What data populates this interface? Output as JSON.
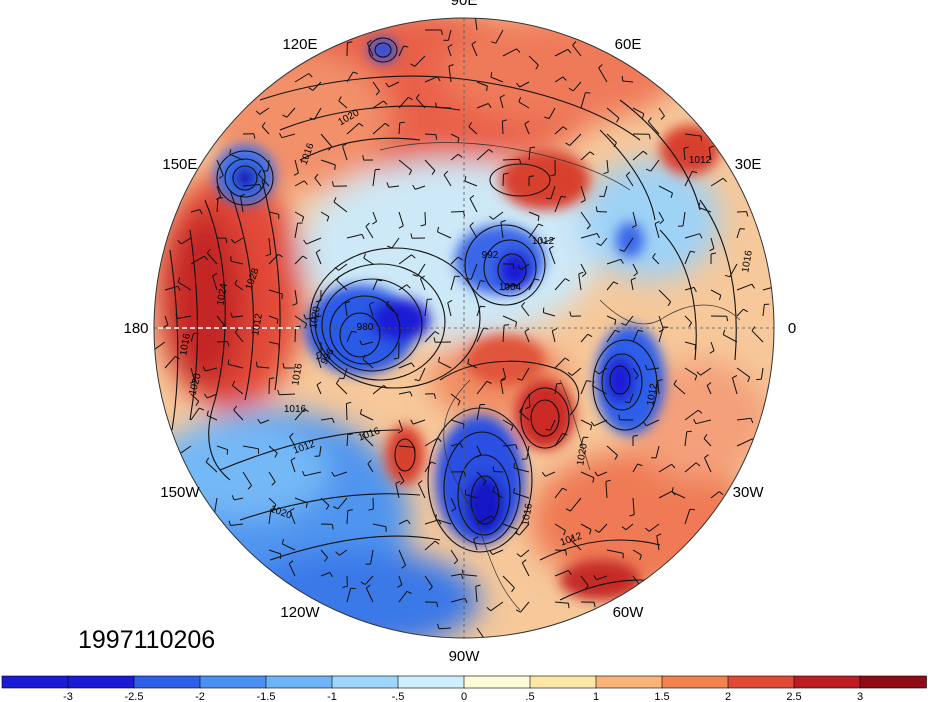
{
  "map": {
    "projection": "north-polar-stereographic",
    "date_label": "1997110206",
    "longitude_labels": [
      {
        "lon": 90,
        "text": "90E"
      },
      {
        "lon": 120,
        "text": "120E"
      },
      {
        "lon": 60,
        "text": "60E"
      },
      {
        "lon": 150,
        "text": "150E"
      },
      {
        "lon": 30,
        "text": "30E"
      },
      {
        "lon": 180,
        "text": "180"
      },
      {
        "lon": 0,
        "text": "0"
      },
      {
        "lon": -150,
        "text": "150W"
      },
      {
        "lon": -30,
        "text": "30W"
      },
      {
        "lon": -120,
        "text": "120W"
      },
      {
        "lon": -60,
        "text": "60W"
      },
      {
        "lon": -90,
        "text": "90W"
      }
    ],
    "contour_labels": [
      "1012",
      "1016",
      "1020",
      "1024",
      "1028",
      "1012",
      "1016",
      "1020",
      "1016",
      "1012",
      "1020",
      "1016",
      "1012",
      "1016",
      "1012",
      "1020",
      "1016",
      "996",
      "980",
      "992",
      "1004",
      "1012",
      "1016",
      "1020"
    ],
    "shading_levels": {
      "colors": [
        "#1b1bd6",
        "#2e5fe8",
        "#4a8ff2",
        "#6eb5f8",
        "#9cd6fb",
        "#cdeefc",
        "#fefbd9",
        "#fde7a6",
        "#f9b47a",
        "#f2824e",
        "#e04a35",
        "#bd1d22",
        "#8f0b15"
      ],
      "ticks": [
        "-3",
        "-2.5",
        "-2",
        "-1.5",
        "-1",
        "-.5",
        "0",
        ".5",
        "1",
        "1.5",
        "2",
        "2.5",
        "3"
      ]
    }
  }
}
